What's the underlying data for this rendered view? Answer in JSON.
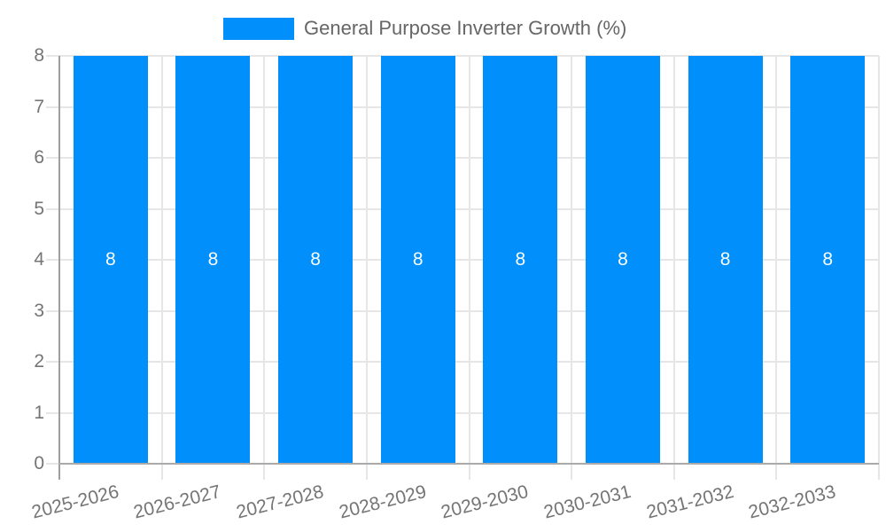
{
  "chart_data": {
    "type": "bar",
    "title": "General Purpose Inverter Growth (%)",
    "categories": [
      "2025-2026",
      "2026-2027",
      "2027-2028",
      "2028-2029",
      "2029-2030",
      "2030-2031",
      "2031-2032",
      "2032-2033"
    ],
    "series": [
      {
        "name": "General Purpose Inverter Growth (%)",
        "values": [
          8,
          8,
          8,
          8,
          8,
          8,
          8,
          8
        ],
        "color": "#008FFB"
      }
    ],
    "data_labels": [
      "8",
      "8",
      "8",
      "8",
      "8",
      "8",
      "8",
      "8"
    ],
    "xlabel": "",
    "ylabel": "",
    "ylim": [
      0,
      8
    ],
    "yticks": [
      "0",
      "1",
      "2",
      "3",
      "4",
      "5",
      "6",
      "7",
      "8"
    ],
    "grid": "on",
    "legend_position": "top"
  },
  "legend": {
    "label": "General Purpose Inverter Growth (%)"
  },
  "colors": {
    "bar": "#008FFB",
    "gridline": "#e6e6e6",
    "y_axis_line": "#9e9e9e",
    "baseline": "#aaaaaa",
    "axis_label": "#757575",
    "legend_text": "#666666",
    "data_label": "#ffffff"
  }
}
